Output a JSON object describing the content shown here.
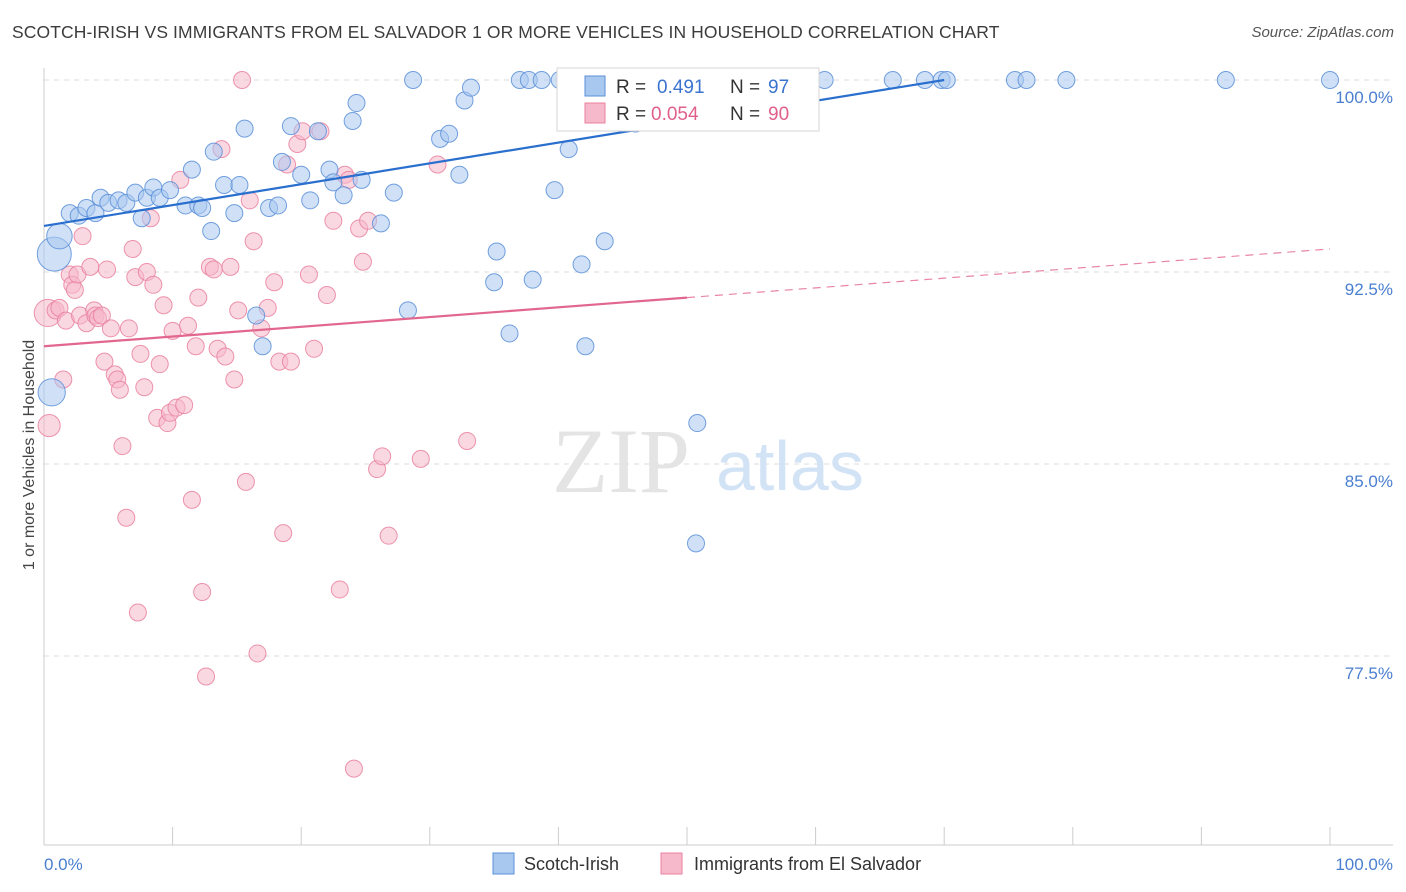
{
  "title": "SCOTCH-IRISH VS IMMIGRANTS FROM EL SALVADOR 1 OR MORE VEHICLES IN HOUSEHOLD CORRELATION CHART",
  "source": "Source: ZipAtlas.com",
  "watermark": {
    "zip": "ZIP",
    "atlas": "atlas"
  },
  "colors": {
    "blue_fill": "#a9c8f0",
    "blue_stroke": "#5b8fd8",
    "blue_line": "#2a6fce",
    "pink_fill": "#f6b8cb",
    "pink_stroke": "#e9819f",
    "pink_line": "#e2678f",
    "grid": "#dddddd",
    "tick_text": "#4a7fd0"
  },
  "stats_box": {
    "rows": [
      {
        "r_label": "R =",
        "r_value": "0.491",
        "n_label": "N =",
        "n_value": "97",
        "series": "blue"
      },
      {
        "r_label": "R =",
        "r_value": "0.054",
        "n_label": "N =",
        "n_value": "90",
        "series": "pink"
      }
    ]
  },
  "legend": {
    "items": [
      {
        "label": "Scotch-Irish",
        "series": "blue"
      },
      {
        "label": "Immigrants from El Salvador",
        "series": "pink"
      }
    ]
  },
  "chart_data": {
    "type": "scatter",
    "title": "SCOTCH-IRISH VS IMMIGRANTS FROM EL SALVADOR 1 OR MORE VEHICLES IN HOUSEHOLD CORRELATION CHART",
    "xlabel": "",
    "ylabel": "1 or more Vehicles in Household",
    "xlim": [
      0,
      100
    ],
    "ylim": [
      71.5,
      101
    ],
    "y_ticks": [
      {
        "value": 100.0,
        "label": "100.0%"
      },
      {
        "value": 92.5,
        "label": "92.5%"
      },
      {
        "value": 85.0,
        "label": "85.0%"
      },
      {
        "value": 77.5,
        "label": "77.5%"
      }
    ],
    "x_ticks": [
      {
        "value": 0,
        "label": "0.0%"
      },
      {
        "value": 100,
        "label": "100.0%"
      }
    ],
    "grid": true,
    "legend_position": "bottom",
    "series": [
      {
        "name": "Scotch-Irish",
        "color": "blue",
        "trend": {
          "x": [
            0,
            70
          ],
          "y": [
            94.3,
            100.0
          ],
          "style": "solid"
        },
        "points": [
          [
            0.8,
            93.2,
            2
          ],
          [
            1.2,
            93.9,
            1.5
          ],
          [
            0.6,
            87.8,
            1.6
          ],
          [
            2.0,
            94.8,
            1
          ],
          [
            2.7,
            94.7,
            1
          ],
          [
            3.3,
            95.0,
            1
          ],
          [
            4.0,
            94.8,
            1
          ],
          [
            4.4,
            95.4,
            1
          ],
          [
            5.0,
            95.2,
            1
          ],
          [
            5.8,
            95.3,
            1
          ],
          [
            6.4,
            95.2,
            1
          ],
          [
            7.1,
            95.6,
            1
          ],
          [
            7.6,
            94.6,
            1
          ],
          [
            8.0,
            95.4,
            1
          ],
          [
            8.5,
            95.8,
            1
          ],
          [
            9.0,
            95.4,
            1
          ],
          [
            9.8,
            95.7,
            1
          ],
          [
            11.0,
            95.1,
            1
          ],
          [
            11.5,
            96.5,
            1
          ],
          [
            12.0,
            95.1,
            1
          ],
          [
            12.3,
            95.0,
            1
          ],
          [
            13.0,
            94.1,
            1
          ],
          [
            13.2,
            97.2,
            1
          ],
          [
            14.0,
            95.9,
            1
          ],
          [
            14.8,
            94.8,
            1
          ],
          [
            15.2,
            95.9,
            1
          ],
          [
            15.6,
            98.1,
            1
          ],
          [
            16.5,
            90.8,
            1
          ],
          [
            17.0,
            89.6,
            1
          ],
          [
            17.5,
            95.0,
            1
          ],
          [
            18.2,
            95.1,
            1
          ],
          [
            18.5,
            96.8,
            1
          ],
          [
            19.2,
            98.2,
            1
          ],
          [
            20.0,
            96.3,
            1
          ],
          [
            20.7,
            95.3,
            1
          ],
          [
            21.3,
            98.0,
            1
          ],
          [
            22.2,
            96.5,
            1
          ],
          [
            22.5,
            96.0,
            1
          ],
          [
            23.3,
            95.5,
            1
          ],
          [
            24.0,
            98.4,
            1
          ],
          [
            24.3,
            99.1,
            1
          ],
          [
            24.7,
            96.1,
            1
          ],
          [
            26.2,
            94.4,
            1
          ],
          [
            27.2,
            95.6,
            1
          ],
          [
            28.3,
            91.0,
            1
          ],
          [
            28.7,
            100.0,
            1
          ],
          [
            30.8,
            97.7,
            1
          ],
          [
            31.5,
            97.9,
            1
          ],
          [
            32.3,
            96.3,
            1
          ],
          [
            32.7,
            99.2,
            1
          ],
          [
            33.2,
            99.7,
            1
          ],
          [
            35.0,
            92.1,
            1
          ],
          [
            35.2,
            93.3,
            1
          ],
          [
            36.2,
            90.1,
            1
          ],
          [
            37.0,
            100.0,
            1
          ],
          [
            37.7,
            100.0,
            1
          ],
          [
            38.0,
            92.2,
            1
          ],
          [
            38.7,
            100.0,
            1
          ],
          [
            39.7,
            95.7,
            1
          ],
          [
            40.1,
            100.0,
            1
          ],
          [
            40.8,
            97.3,
            1
          ],
          [
            41.8,
            92.8,
            1
          ],
          [
            42.1,
            89.6,
            1
          ],
          [
            43.2,
            100.0,
            1
          ],
          [
            43.6,
            93.7,
            1
          ],
          [
            45.1,
            100.0,
            1
          ],
          [
            46.0,
            98.3,
            1
          ],
          [
            46.7,
            100.0,
            1
          ],
          [
            47.2,
            100.0,
            1
          ],
          [
            47.3,
            98.9,
            1
          ],
          [
            48.2,
            100.0,
            1
          ],
          [
            48.6,
            100.0,
            1
          ],
          [
            49.3,
            100.0,
            1
          ],
          [
            50.3,
            100.0,
            1
          ],
          [
            50.7,
            100.0,
            1
          ],
          [
            50.8,
            86.6,
            1
          ],
          [
            51.0,
            100.0,
            1
          ],
          [
            51.6,
            100.0,
            1
          ],
          [
            52.1,
            100.0,
            1
          ],
          [
            53.3,
            100.0,
            1
          ],
          [
            54.2,
            100.0,
            1
          ],
          [
            54.5,
            100.0,
            1
          ],
          [
            55.4,
            100.0,
            1
          ],
          [
            56.5,
            100.0,
            1
          ],
          [
            57.5,
            100.0,
            1
          ],
          [
            58.8,
            100.0,
            1
          ],
          [
            60.7,
            100.0,
            1
          ],
          [
            66.0,
            100.0,
            1
          ],
          [
            68.5,
            100.0,
            1
          ],
          [
            69.8,
            100.0,
            1
          ],
          [
            70.2,
            100.0,
            1
          ],
          [
            75.5,
            100.0,
            1
          ],
          [
            76.4,
            100.0,
            1
          ],
          [
            79.5,
            100.0,
            1
          ],
          [
            91.9,
            100.0,
            1
          ],
          [
            100.0,
            100.0,
            1
          ],
          [
            50.7,
            81.9,
            1
          ]
        ]
      },
      {
        "name": "Immigrants from El Salvador",
        "color": "pink",
        "trend": {
          "x": [
            0,
            50
          ],
          "y": [
            89.6,
            91.5
          ],
          "style": "solid",
          "dashed_to": [
            100,
            93.4
          ]
        },
        "points": [
          [
            0.3,
            90.9,
            1.6
          ],
          [
            0.4,
            86.5,
            1.3
          ],
          [
            0.9,
            91.0,
            1
          ],
          [
            1.2,
            91.1,
            1
          ],
          [
            1.5,
            88.3,
            1
          ],
          [
            1.7,
            90.6,
            1
          ],
          [
            2.0,
            92.4,
            1
          ],
          [
            2.2,
            92.0,
            1
          ],
          [
            2.4,
            91.8,
            1
          ],
          [
            2.6,
            92.4,
            1
          ],
          [
            2.8,
            90.8,
            1
          ],
          [
            3.0,
            93.9,
            1
          ],
          [
            3.3,
            90.5,
            1
          ],
          [
            3.6,
            92.7,
            1
          ],
          [
            3.9,
            91.0,
            1
          ],
          [
            4.0,
            90.8,
            1
          ],
          [
            4.2,
            90.7,
            1
          ],
          [
            4.5,
            90.8,
            1
          ],
          [
            4.7,
            89.0,
            1
          ],
          [
            4.9,
            92.6,
            1
          ],
          [
            5.2,
            90.3,
            1
          ],
          [
            5.5,
            88.5,
            1
          ],
          [
            5.7,
            88.3,
            1
          ],
          [
            5.9,
            87.9,
            1
          ],
          [
            6.1,
            85.7,
            1
          ],
          [
            6.4,
            82.9,
            1
          ],
          [
            6.6,
            90.3,
            1
          ],
          [
            6.9,
            93.4,
            1
          ],
          [
            7.1,
            92.3,
            1
          ],
          [
            7.3,
            79.2,
            1
          ],
          [
            7.5,
            89.3,
            1
          ],
          [
            7.8,
            88.0,
            1
          ],
          [
            8.0,
            92.5,
            1
          ],
          [
            8.3,
            94.6,
            1
          ],
          [
            8.5,
            92.0,
            1
          ],
          [
            8.8,
            86.8,
            1
          ],
          [
            9.0,
            88.9,
            1
          ],
          [
            9.3,
            91.2,
            1
          ],
          [
            9.6,
            86.6,
            1
          ],
          [
            9.8,
            87.0,
            1
          ],
          [
            10.0,
            90.2,
            1
          ],
          [
            10.3,
            87.2,
            1
          ],
          [
            10.6,
            96.1,
            1
          ],
          [
            10.9,
            87.3,
            1
          ],
          [
            11.2,
            90.4,
            1
          ],
          [
            11.5,
            83.6,
            1
          ],
          [
            11.8,
            89.6,
            1
          ],
          [
            12.0,
            91.5,
            1
          ],
          [
            12.3,
            80.0,
            1
          ],
          [
            12.6,
            76.7,
            1
          ],
          [
            12.9,
            92.7,
            1
          ],
          [
            13.2,
            92.6,
            1
          ],
          [
            13.5,
            89.5,
            1
          ],
          [
            13.8,
            97.3,
            1
          ],
          [
            14.1,
            89.2,
            1
          ],
          [
            14.5,
            92.7,
            1
          ],
          [
            14.8,
            88.3,
            1
          ],
          [
            15.1,
            91.0,
            1
          ],
          [
            15.4,
            100.0,
            1
          ],
          [
            15.7,
            84.3,
            1
          ],
          [
            16.0,
            95.3,
            1
          ],
          [
            16.3,
            93.7,
            1
          ],
          [
            16.6,
            77.6,
            1
          ],
          [
            16.9,
            90.3,
            1
          ],
          [
            17.4,
            91.1,
            1
          ],
          [
            17.9,
            92.1,
            1
          ],
          [
            18.3,
            89.0,
            1
          ],
          [
            18.6,
            82.3,
            1
          ],
          [
            18.9,
            96.7,
            1
          ],
          [
            19.2,
            89.0,
            1
          ],
          [
            19.7,
            97.5,
            1
          ],
          [
            20.1,
            98.0,
            1
          ],
          [
            20.6,
            92.4,
            1
          ],
          [
            21.0,
            89.5,
            1
          ],
          [
            21.5,
            98.0,
            1
          ],
          [
            22.0,
            91.6,
            1
          ],
          [
            22.5,
            94.5,
            1
          ],
          [
            23.0,
            80.1,
            1
          ],
          [
            23.4,
            96.3,
            1
          ],
          [
            23.7,
            96.1,
            1
          ],
          [
            24.1,
            73.1,
            1
          ],
          [
            24.5,
            94.2,
            1
          ],
          [
            24.8,
            92.9,
            1
          ],
          [
            25.2,
            94.5,
            1
          ],
          [
            25.9,
            84.8,
            1
          ],
          [
            26.3,
            85.3,
            1
          ],
          [
            26.8,
            82.2,
            1
          ],
          [
            29.3,
            85.2,
            1
          ],
          [
            30.6,
            96.7,
            1
          ],
          [
            32.9,
            85.9,
            1
          ]
        ]
      }
    ]
  }
}
